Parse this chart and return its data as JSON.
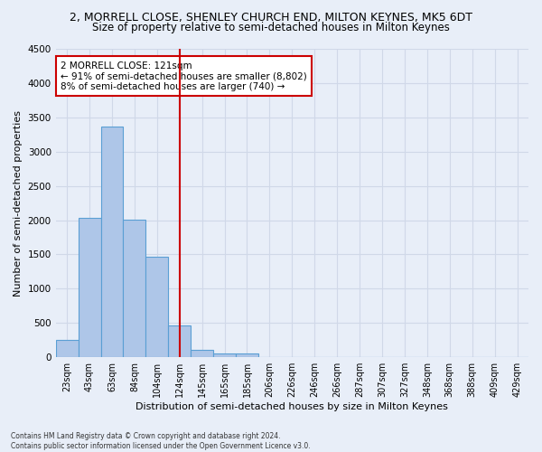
{
  "title_line1": "2, MORRELL CLOSE, SHENLEY CHURCH END, MILTON KEYNES, MK5 6DT",
  "title_line2": "Size of property relative to semi-detached houses in Milton Keynes",
  "xlabel": "Distribution of semi-detached houses by size in Milton Keynes",
  "ylabel": "Number of semi-detached properties",
  "footnote": "Contains HM Land Registry data © Crown copyright and database right 2024.\nContains public sector information licensed under the Open Government Licence v3.0.",
  "bin_labels": [
    "23sqm",
    "43sqm",
    "63sqm",
    "84sqm",
    "104sqm",
    "124sqm",
    "145sqm",
    "165sqm",
    "185sqm",
    "206sqm",
    "226sqm",
    "246sqm",
    "266sqm",
    "287sqm",
    "307sqm",
    "327sqm",
    "348sqm",
    "368sqm",
    "388sqm",
    "409sqm",
    "429sqm"
  ],
  "bin_values": [
    250,
    2030,
    3370,
    2010,
    1470,
    470,
    105,
    60,
    50,
    0,
    0,
    0,
    0,
    0,
    0,
    0,
    0,
    0,
    0,
    0,
    0
  ],
  "bar_color": "#aec6e8",
  "bar_edge_color": "#5a9fd4",
  "vline_x": 5,
  "vline_color": "#cc0000",
  "annotation_text": "2 MORRELL CLOSE: 121sqm\n← 91% of semi-detached houses are smaller (8,802)\n8% of semi-detached houses are larger (740) →",
  "annotation_box_color": "#ffffff",
  "annotation_box_edge": "#cc0000",
  "ylim": [
    0,
    4500
  ],
  "yticks": [
    0,
    500,
    1000,
    1500,
    2000,
    2500,
    3000,
    3500,
    4000,
    4500
  ],
  "grid_color": "#d0d8e8",
  "background_color": "#e8eef8",
  "title1_fontsize": 9,
  "title2_fontsize": 8.5,
  "xlabel_fontsize": 8,
  "ylabel_fontsize": 8,
  "annotation_fontsize": 7.5
}
